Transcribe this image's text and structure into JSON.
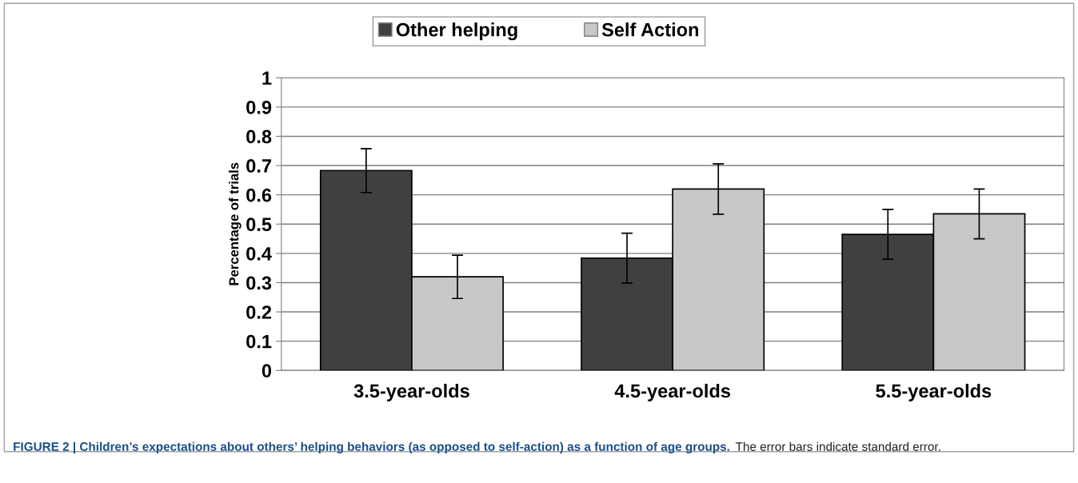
{
  "chart_data": {
    "type": "bar",
    "categories": [
      "3.5-year-olds",
      "4.5-year-olds",
      "5.5-year-olds"
    ],
    "series": [
      {
        "name": "Other helping",
        "color": "#404040",
        "values": [
          0.683,
          0.384,
          0.465
        ],
        "errors": [
          0.075,
          0.085,
          0.085
        ]
      },
      {
        "name": "Self Action",
        "color": "#c8c8c8",
        "values": [
          0.32,
          0.62,
          0.535
        ],
        "errors": [
          0.074,
          0.086,
          0.085
        ]
      }
    ],
    "ylabel": "Percentage of trials",
    "ylim": [
      0,
      1
    ],
    "yticks": [
      0,
      0.1,
      0.2,
      0.3,
      0.4,
      0.5,
      0.6,
      0.7,
      0.8,
      0.9,
      1
    ],
    "grid": "y",
    "legend": "top",
    "annotations": [
      "FIGURE 2 | Children’s expectations about others’ helping behaviors (as opposed to self-action) as a function of age groups.",
      "The error bars indicate standard error."
    ]
  }
}
